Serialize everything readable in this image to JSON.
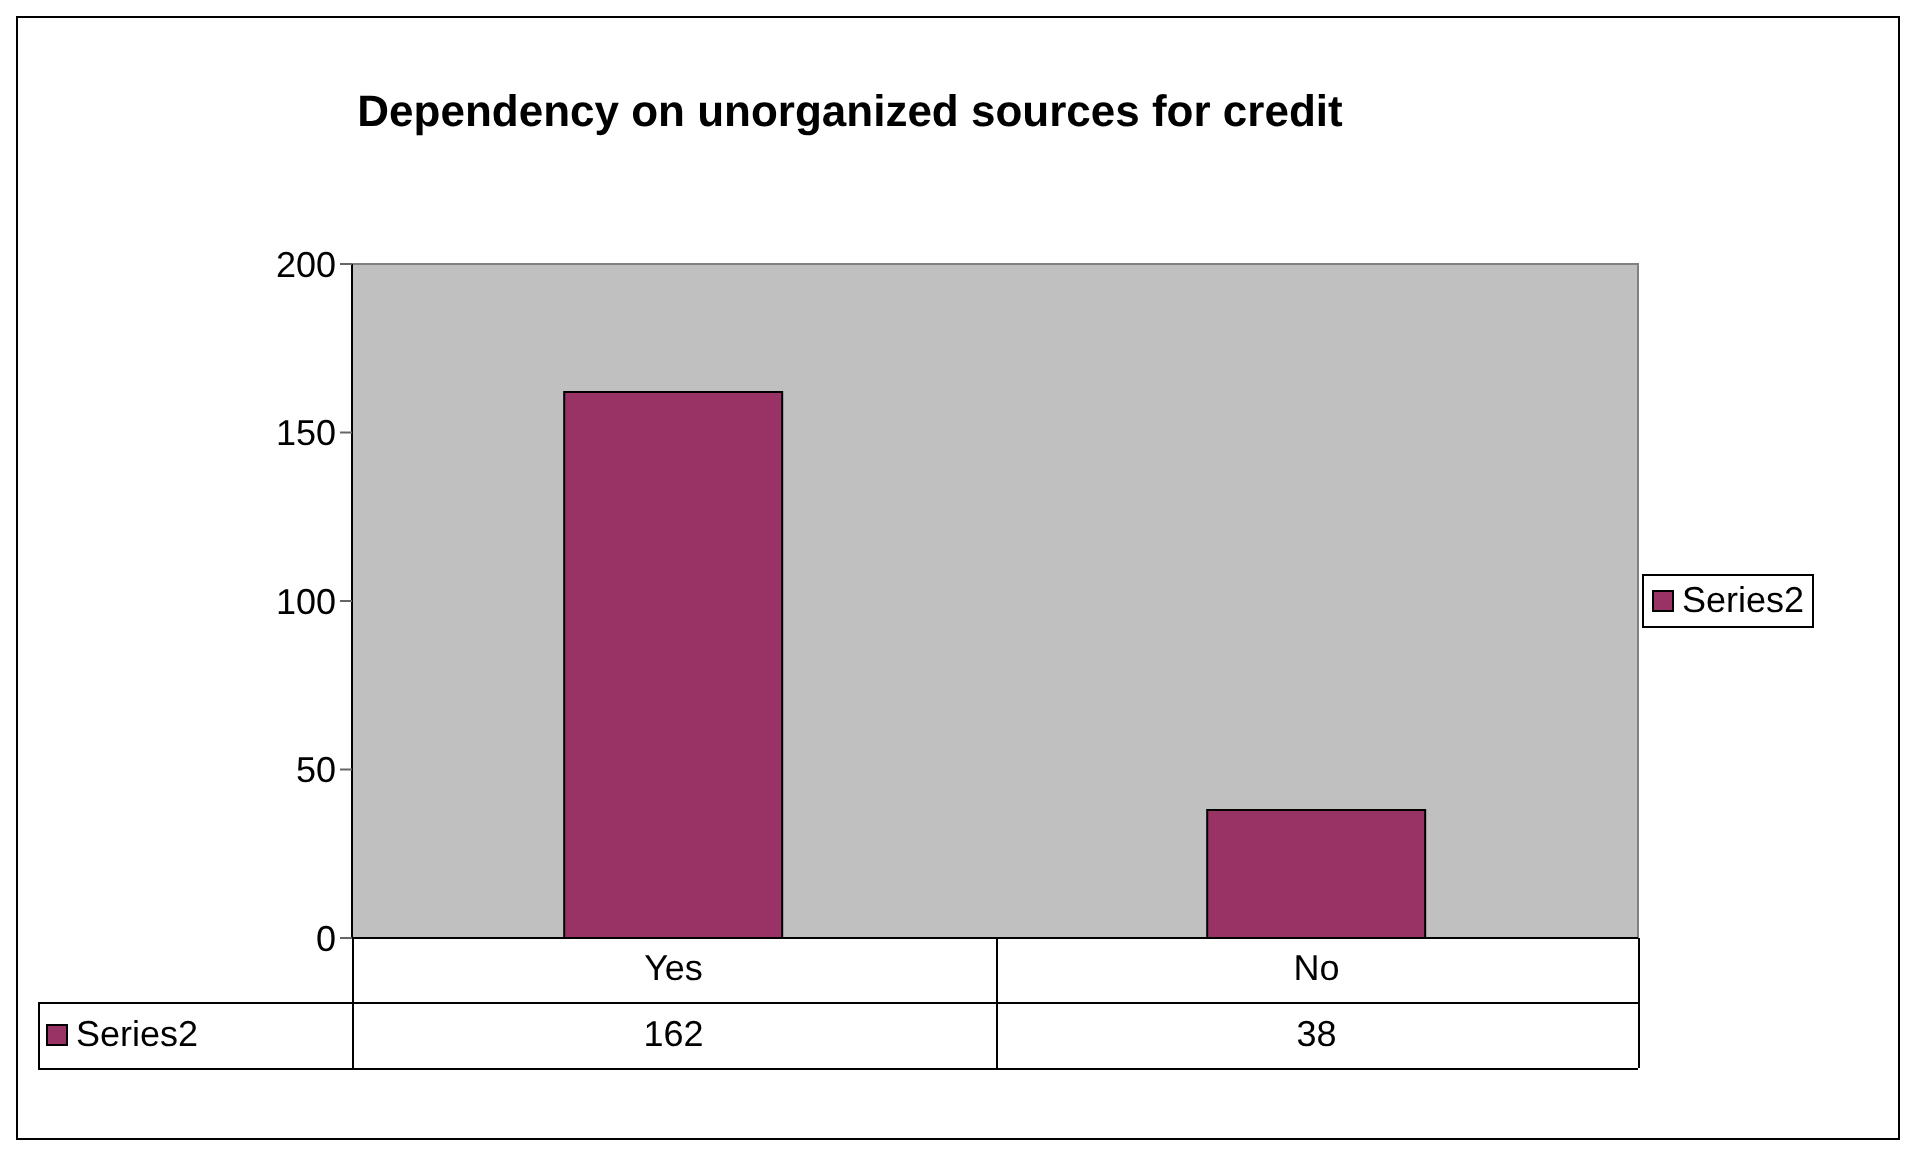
{
  "chart_data": {
    "type": "bar",
    "title": "Dependency on unorganized  sources for credit",
    "categories": [
      "Yes",
      "No"
    ],
    "series": [
      {
        "name": "Series2",
        "color": "#993366",
        "values": [
          162,
          38
        ]
      }
    ],
    "ylim": [
      0,
      200
    ],
    "yticks": [
      0,
      50,
      100,
      150,
      200
    ],
    "legend": "right",
    "data_labels": true
  }
}
